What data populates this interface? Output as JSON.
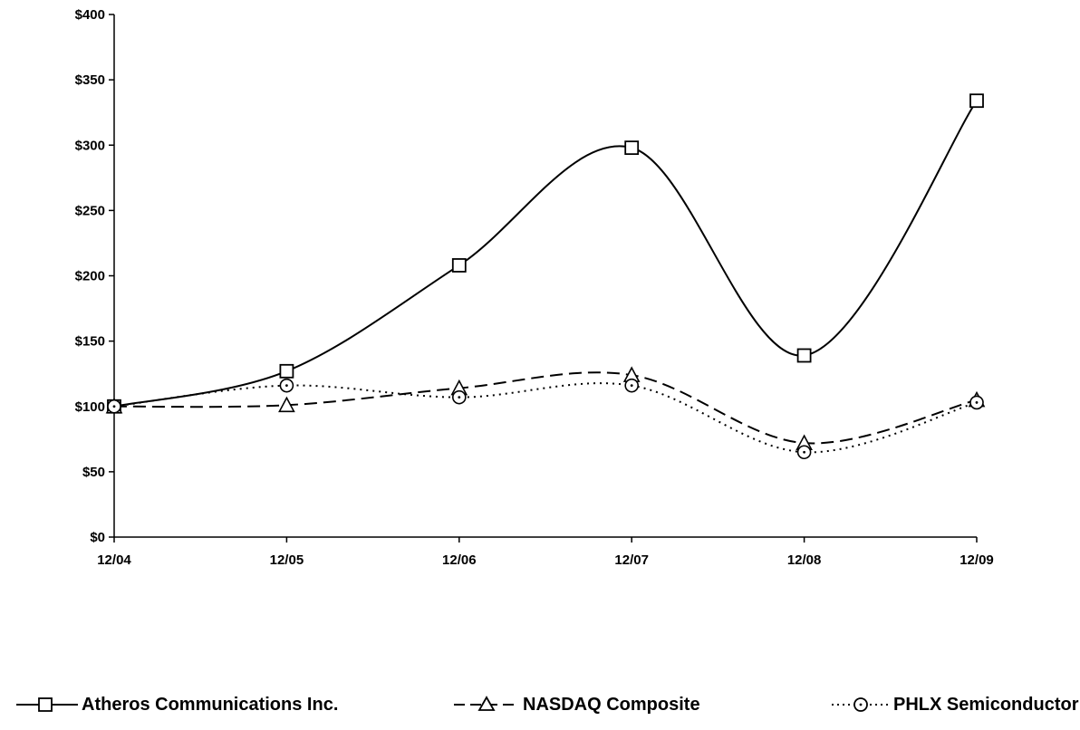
{
  "chart_data": {
    "type": "line",
    "categories": [
      "12/04",
      "12/05",
      "12/06",
      "12/07",
      "12/08",
      "12/09"
    ],
    "y_ticks": [
      "$0",
      "$50",
      "$100",
      "$150",
      "$200",
      "$250",
      "$300",
      "$350",
      "$400"
    ],
    "ylim": [
      0,
      400
    ],
    "grid": false,
    "legend_position": "bottom",
    "series": [
      {
        "name": "Atheros Communications Inc.",
        "values": [
          100,
          127,
          208,
          298,
          139,
          334
        ],
        "line_style": "solid",
        "marker": "square",
        "color": "#000000"
      },
      {
        "name": "NASDAQ Composite",
        "values": [
          100,
          101,
          114,
          124,
          72,
          105
        ],
        "line_style": "dashed",
        "marker": "triangle",
        "color": "#000000"
      },
      {
        "name": "PHLX Semiconductor",
        "values": [
          100,
          116,
          107,
          116,
          65,
          103
        ],
        "line_style": "dotted",
        "marker": "circle",
        "color": "#000000"
      }
    ]
  }
}
